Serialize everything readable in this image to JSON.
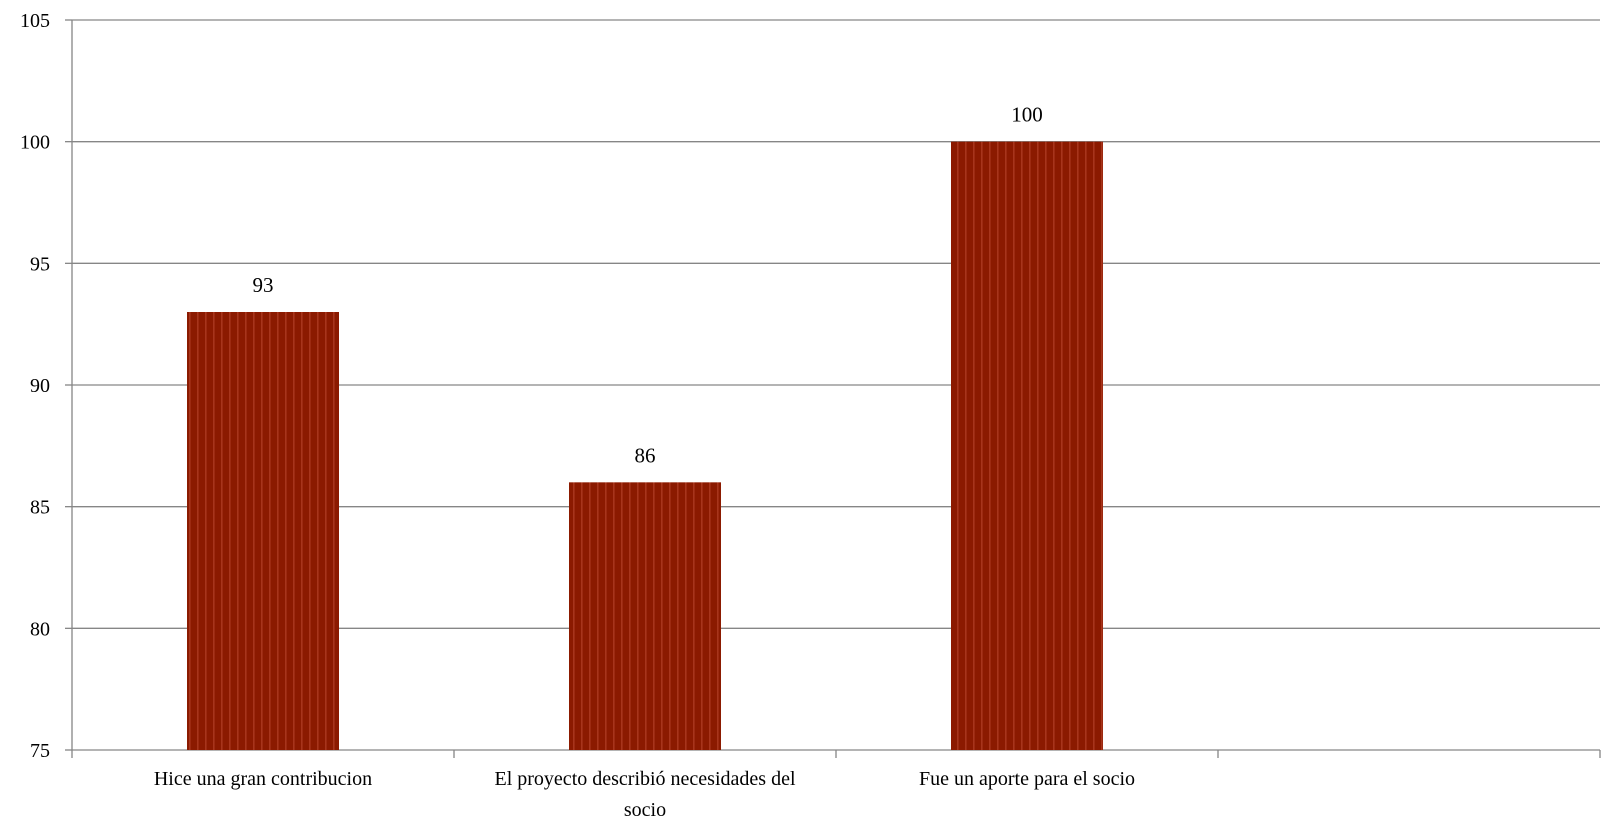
{
  "chart_data": {
    "type": "bar",
    "categories": [
      [
        "Hice una gran contribucion"
      ],
      [
        "El proyecto describió necesidades del",
        "socio"
      ],
      [
        "Fue un aporte para el socio"
      ],
      [
        ""
      ]
    ],
    "values": [
      93,
      86,
      100,
      null
    ],
    "data_labels": [
      "93",
      "86",
      "100",
      ""
    ],
    "ylim": [
      75,
      105
    ],
    "yticks": [
      75,
      80,
      85,
      90,
      95,
      100,
      105
    ],
    "ytick_labels": [
      "75",
      "80",
      "85",
      "90",
      "95",
      "100",
      "105"
    ],
    "grid": true,
    "legend": "none",
    "title": "",
    "xlabel": "",
    "ylabel": "",
    "bar_color": "#8B1A00",
    "bar_stripe_color": "#A7351C",
    "grid_color": "#868686",
    "axis_color": "#868686"
  }
}
